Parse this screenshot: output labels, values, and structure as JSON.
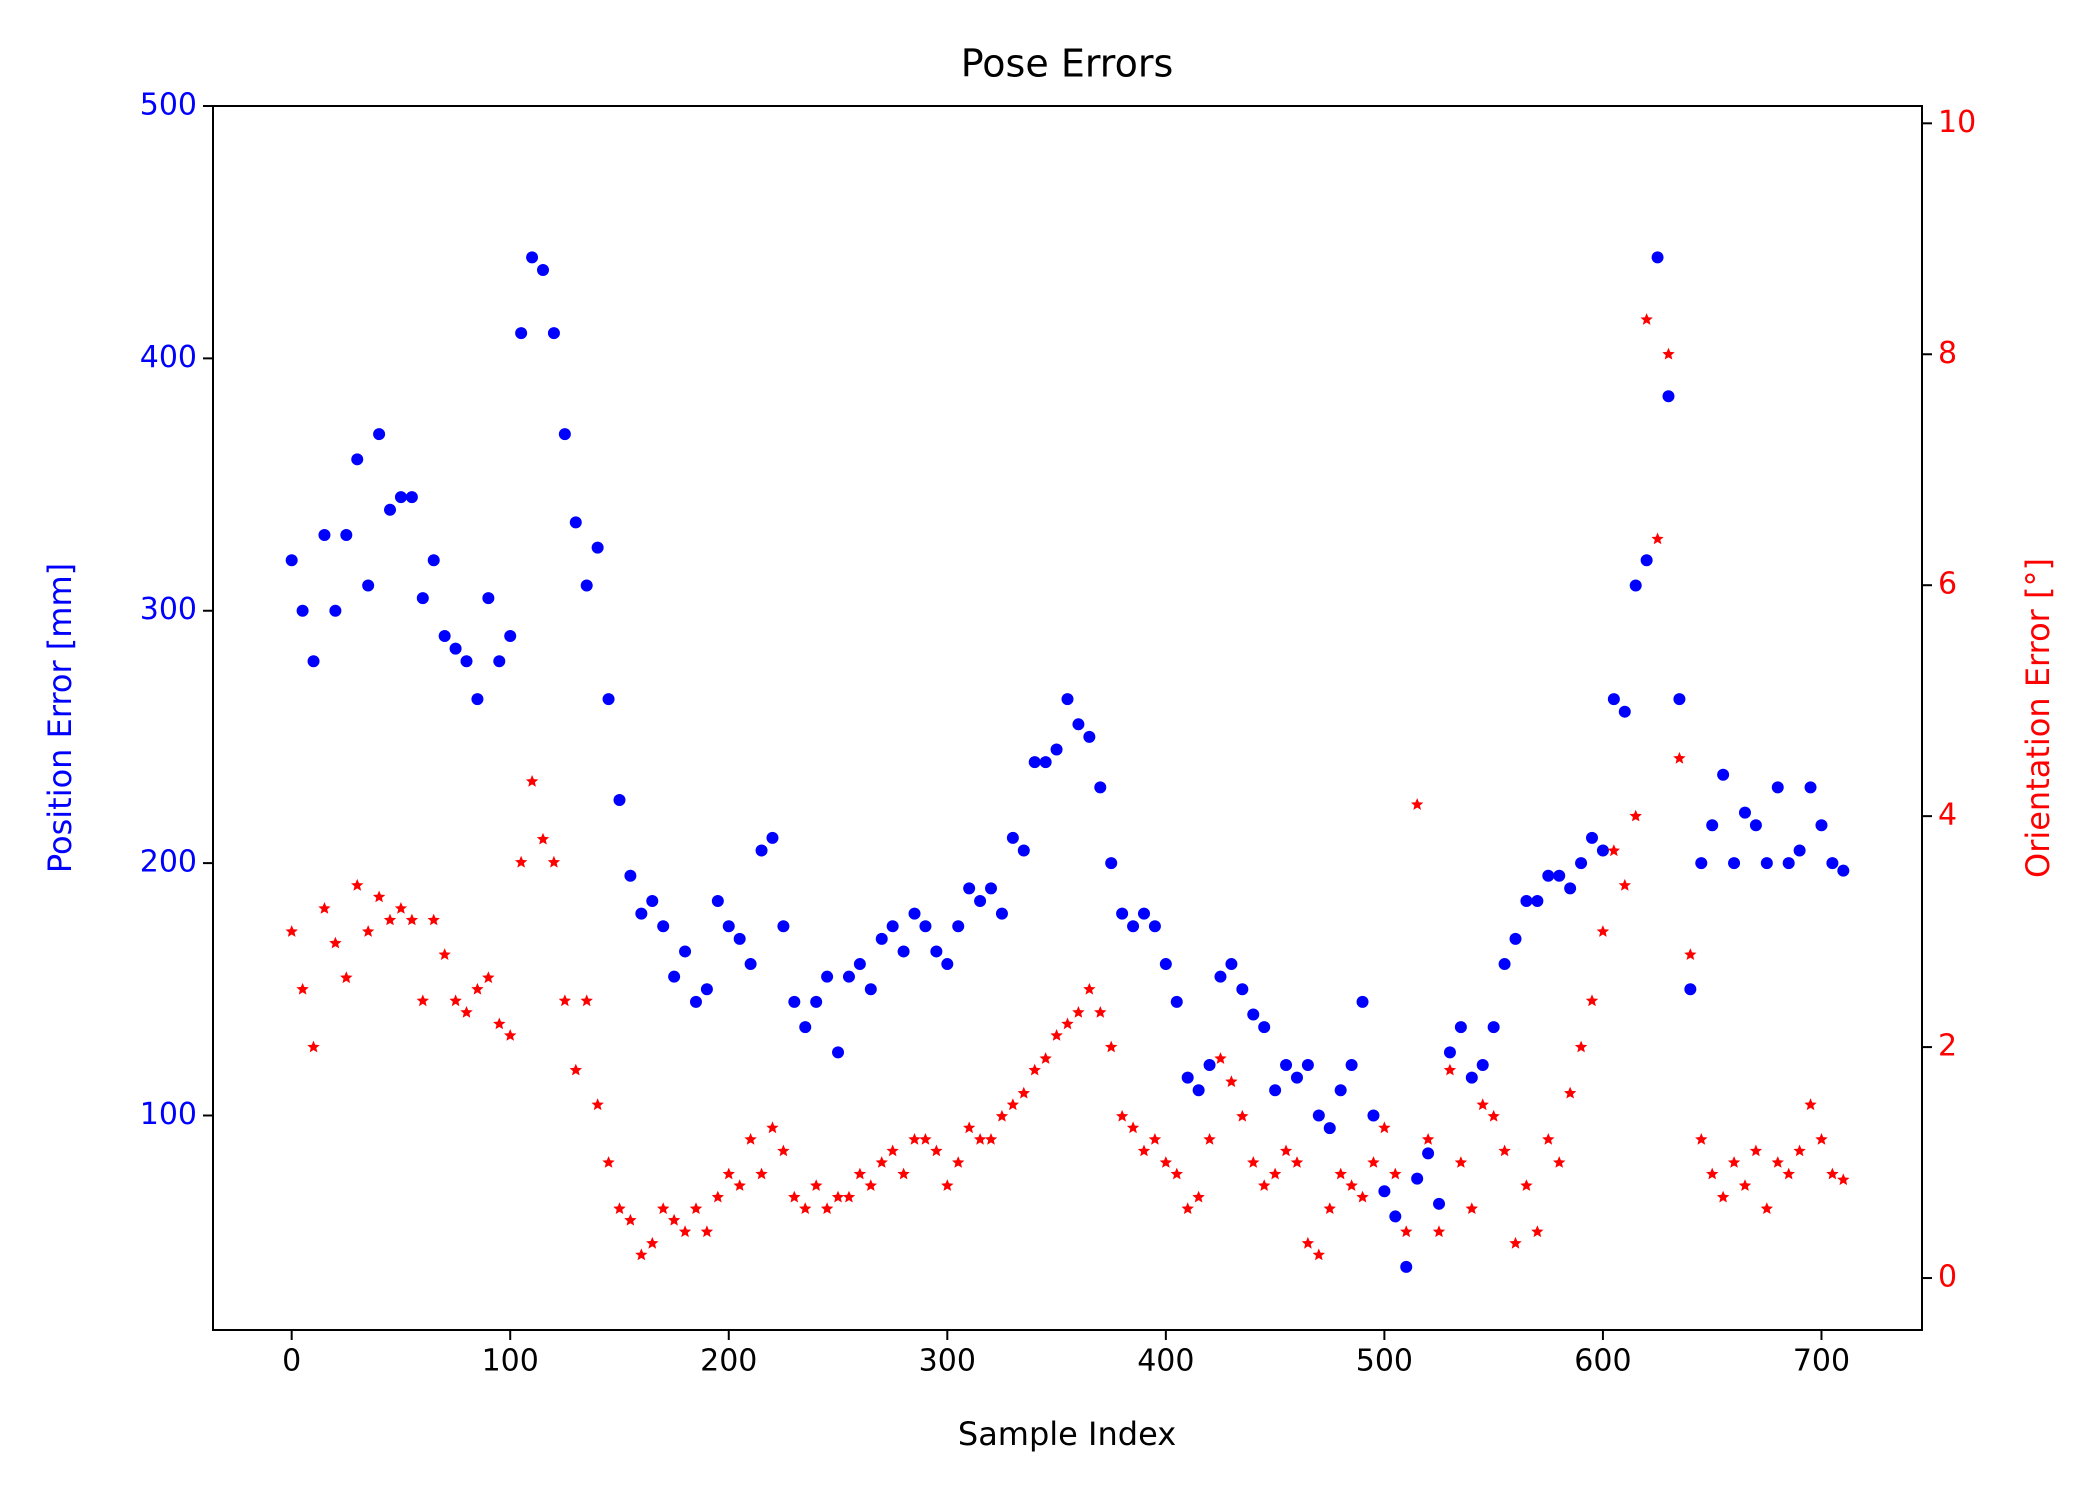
{
  "chart_data": {
    "type": "scatter",
    "title": "Pose Errors",
    "xlabel": "Sample Index",
    "ylabel": "Position Error [mm]",
    "y2label": "Orientation Error [°]",
    "x": [
      0,
      5,
      10,
      15,
      20,
      25,
      30,
      35,
      40,
      45,
      50,
      55,
      60,
      65,
      70,
      75,
      80,
      85,
      90,
      95,
      100,
      105,
      110,
      115,
      120,
      125,
      130,
      135,
      140,
      145,
      150,
      155,
      160,
      165,
      170,
      175,
      180,
      185,
      190,
      195,
      200,
      205,
      210,
      215,
      220,
      225,
      230,
      235,
      240,
      245,
      250,
      255,
      260,
      265,
      270,
      275,
      280,
      285,
      290,
      295,
      300,
      305,
      310,
      315,
      320,
      325,
      330,
      335,
      340,
      345,
      350,
      355,
      360,
      365,
      370,
      375,
      380,
      385,
      390,
      395,
      400,
      405,
      410,
      415,
      420,
      425,
      430,
      435,
      440,
      445,
      450,
      455,
      460,
      465,
      470,
      475,
      480,
      485,
      490,
      495,
      500,
      505,
      510,
      515,
      520,
      525,
      530,
      535,
      540,
      545,
      550,
      555,
      560,
      565,
      570,
      575,
      580,
      585,
      590,
      595,
      600,
      605,
      610,
      615,
      620,
      625,
      630,
      635,
      640,
      645,
      650,
      655,
      660,
      665,
      670,
      675,
      680,
      685,
      690,
      695,
      700,
      705,
      710
    ],
    "series": [
      {
        "color": "#0000ff",
        "marker": "circle",
        "axis": "y",
        "values": [
          320,
          300,
          280,
          330,
          300,
          330,
          360,
          310,
          370,
          340,
          345,
          345,
          305,
          320,
          290,
          285,
          280,
          265,
          305,
          280,
          290,
          410,
          440,
          435,
          410,
          370,
          335,
          310,
          325,
          265,
          225,
          195,
          180,
          185,
          175,
          155,
          165,
          145,
          150,
          185,
          175,
          170,
          160,
          205,
          210,
          175,
          145,
          135,
          145,
          155,
          125,
          155,
          160,
          150,
          170,
          175,
          165,
          180,
          175,
          165,
          160,
          175,
          190,
          185,
          190,
          180,
          210,
          205,
          240,
          240,
          245,
          265,
          255,
          250,
          230,
          200,
          180,
          175,
          180,
          175,
          160,
          145,
          115,
          110,
          120,
          155,
          160,
          150,
          140,
          135,
          110,
          120,
          115,
          120,
          100,
          95,
          110,
          120,
          145,
          100,
          70,
          60,
          40,
          75,
          85,
          65,
          125,
          135,
          115,
          120,
          135,
          160,
          170,
          185,
          185,
          195,
          195,
          190,
          200,
          210,
          205,
          265,
          260,
          310,
          320,
          440,
          385,
          265,
          150,
          200,
          215,
          235,
          200,
          220,
          215,
          200,
          230,
          200,
          205,
          230,
          215,
          200,
          197
        ]
      },
      {
        "color": "#ff0000",
        "marker": "star",
        "axis": "y2",
        "values": [
          3.0,
          2.5,
          2.0,
          3.2,
          2.9,
          2.6,
          3.4,
          3.0,
          3.3,
          3.1,
          3.2,
          3.1,
          2.4,
          3.1,
          2.8,
          2.4,
          2.3,
          2.5,
          2.6,
          2.2,
          2.1,
          3.6,
          4.3,
          3.8,
          3.6,
          2.4,
          1.8,
          2.4,
          1.5,
          1.0,
          0.6,
          0.5,
          0.2,
          0.3,
          0.6,
          0.5,
          0.4,
          0.6,
          0.4,
          0.7,
          0.9,
          0.8,
          1.2,
          0.9,
          1.3,
          1.1,
          0.7,
          0.6,
          0.8,
          0.6,
          0.7,
          0.7,
          0.9,
          0.8,
          1.0,
          1.1,
          0.9,
          1.2,
          1.2,
          1.1,
          0.8,
          1.0,
          1.3,
          1.2,
          1.2,
          1.4,
          1.5,
          1.6,
          1.8,
          1.9,
          2.1,
          2.2,
          2.3,
          2.5,
          2.3,
          2.0,
          1.4,
          1.3,
          1.1,
          1.2,
          1.0,
          0.9,
          0.6,
          0.7,
          1.2,
          1.9,
          1.7,
          1.4,
          1.0,
          0.8,
          0.9,
          1.1,
          1.0,
          0.3,
          0.2,
          0.6,
          0.9,
          0.8,
          0.7,
          1.0,
          1.3,
          0.9,
          0.4,
          4.1,
          1.2,
          0.4,
          1.8,
          1.0,
          0.6,
          1.5,
          1.4,
          1.1,
          0.3,
          0.8,
          0.4,
          1.2,
          1.0,
          1.6,
          2.0,
          2.4,
          3.0,
          3.7,
          3.4,
          4.0,
          8.3,
          6.4,
          8.0,
          4.5,
          2.8,
          1.2,
          0.9,
          0.7,
          1.0,
          0.8,
          1.1,
          0.6,
          1.0,
          0.9,
          1.1,
          1.5,
          1.2,
          0.9,
          0.85
        ]
      }
    ],
    "xlim": [
      -36,
      746
    ],
    "xticks": [
      0,
      100,
      200,
      300,
      400,
      500,
      600,
      700
    ],
    "ylim": [
      15,
      500
    ],
    "yticks": [
      100,
      200,
      300,
      400,
      500
    ],
    "y2lim": [
      -0.45,
      10.15
    ],
    "y2ticks": [
      0,
      2,
      4,
      6,
      8,
      10
    ]
  }
}
